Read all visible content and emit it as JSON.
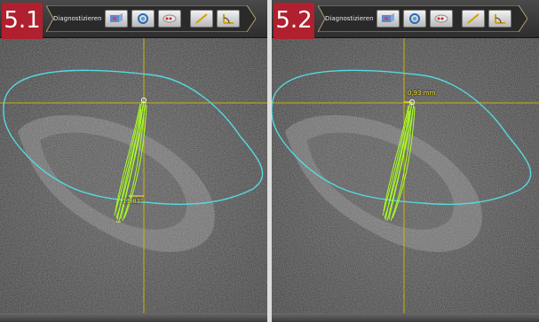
{
  "panels": [
    {
      "badge": "5.1",
      "toolbar_title": "Diagnostizieren",
      "measurement": "11,83°",
      "tools": [
        {
          "icon": "image-3d-icon"
        },
        {
          "icon": "rotate-view-icon"
        },
        {
          "icon": "implant-icon"
        },
        {
          "icon": "line-measure-icon"
        },
        {
          "icon": "angle-measure-icon"
        }
      ]
    },
    {
      "badge": "5.2",
      "toolbar_title": "Diagnostizieren",
      "measurement": "0,93 mm",
      "tools": [
        {
          "icon": "image-3d-icon"
        },
        {
          "icon": "rotate-view-icon"
        },
        {
          "icon": "implant-icon"
        },
        {
          "icon": "line-measure-icon"
        },
        {
          "icon": "angle-measure-icon"
        }
      ]
    }
  ],
  "colors": {
    "badge": "#b0202e",
    "contour": "#55d8e0",
    "crosshair": "#c8b400",
    "implant": "#a8ff20",
    "measurement": "#ffee33"
  }
}
